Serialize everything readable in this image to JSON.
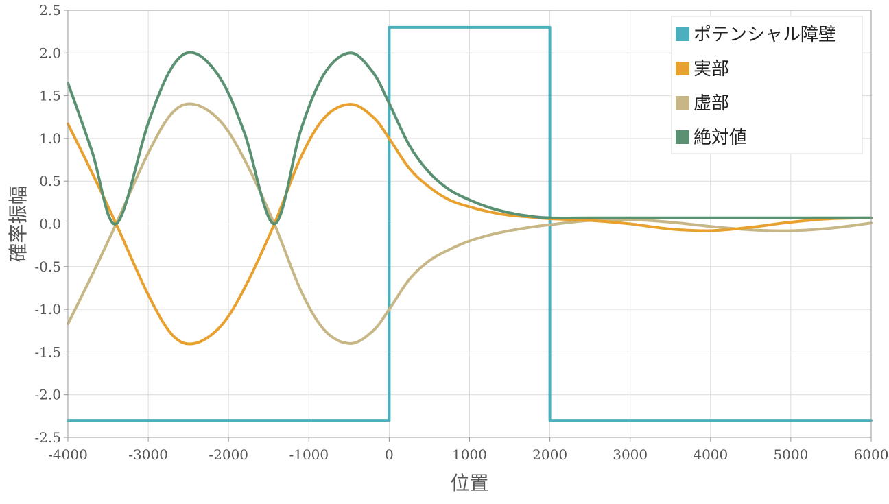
{
  "chart_data": {
    "type": "line",
    "title": "",
    "xlabel": "位置",
    "ylabel": "確率振幅",
    "xlim": [
      -4000,
      6000
    ],
    "ylim": [
      -2.5,
      2.5
    ],
    "x_ticks": [
      -4000,
      -3000,
      -2000,
      -1000,
      0,
      1000,
      2000,
      3000,
      4000,
      5000,
      6000
    ],
    "x_tick_labels": [
      "-4000",
      "-3000",
      "-2000",
      "-1000",
      "0",
      "1000",
      "2000",
      "3000",
      "4000",
      "5000",
      "6000"
    ],
    "y_ticks": [
      2.5,
      2.0,
      1.5,
      1.0,
      0.5,
      0.0,
      -0.5,
      -1.0,
      -1.5,
      -2.0,
      -2.5
    ],
    "y_tick_labels": [
      "2.5",
      "2.0",
      "1.5",
      "1.0",
      "0.5",
      "0.0",
      "-0.5",
      "-1.0",
      "-1.5",
      "-2.0",
      "-2.5"
    ],
    "grid": true,
    "legend_position": "top-right",
    "series": [
      {
        "name": "ポテンシャル障壁",
        "color": "#4BB0BE",
        "x": [
          -4000,
          0,
          0,
          2000,
          2000,
          6000
        ],
        "y": [
          -2.3,
          -2.3,
          2.3,
          2.3,
          -2.3,
          -2.3
        ]
      },
      {
        "name": "実部",
        "color": "#E8A02F",
        "x": [
          -4000,
          -3700,
          -3400,
          -3000,
          -2700,
          -2430,
          -2100,
          -1800,
          -1430,
          -1100,
          -800,
          -480,
          -200,
          0,
          250,
          500,
          750,
          1000,
          1250,
          1500,
          1750,
          2000,
          2500,
          3000,
          3500,
          4000,
          4500,
          5000,
          5500,
          6000
        ],
        "y": [
          1.17,
          0.6,
          0.0,
          -0.83,
          -1.3,
          -1.4,
          -1.2,
          -0.75,
          0.0,
          0.78,
          1.25,
          1.4,
          1.25,
          1.0,
          0.65,
          0.43,
          0.28,
          0.2,
          0.14,
          0.1,
          0.08,
          0.06,
          0.04,
          0.0,
          -0.06,
          -0.08,
          -0.04,
          0.02,
          0.06,
          0.07
        ]
      },
      {
        "name": "虚部",
        "color": "#C8B786",
        "x": [
          -4000,
          -3700,
          -3400,
          -3000,
          -2700,
          -2430,
          -2100,
          -1800,
          -1430,
          -1100,
          -800,
          -480,
          -200,
          0,
          250,
          500,
          750,
          1000,
          1250,
          1500,
          1750,
          2000,
          2500,
          3000,
          3500,
          4000,
          4500,
          5000,
          5500,
          6000
        ],
        "y": [
          -1.17,
          -0.6,
          0.0,
          0.83,
          1.3,
          1.4,
          1.2,
          0.75,
          0.0,
          -0.78,
          -1.25,
          -1.4,
          -1.25,
          -1.0,
          -0.65,
          -0.43,
          -0.3,
          -0.2,
          -0.13,
          -0.08,
          -0.04,
          -0.01,
          0.04,
          0.05,
          0.02,
          -0.03,
          -0.07,
          -0.08,
          -0.05,
          0.01
        ]
      },
      {
        "name": "絶対値",
        "color": "#5A9172",
        "x": [
          -4000,
          -3700,
          -3400,
          -3000,
          -2700,
          -2430,
          -2100,
          -1800,
          -1430,
          -1100,
          -800,
          -480,
          -200,
          0,
          250,
          500,
          750,
          1000,
          1250,
          1500,
          1750,
          2000,
          2500,
          3000,
          3500,
          4000,
          4500,
          5000,
          5500,
          6000
        ],
        "y": [
          1.65,
          0.85,
          0.0,
          1.18,
          1.84,
          2.0,
          1.7,
          1.06,
          0.0,
          1.1,
          1.77,
          2.0,
          1.77,
          1.41,
          0.92,
          0.6,
          0.4,
          0.28,
          0.19,
          0.13,
          0.09,
          0.07,
          0.07,
          0.07,
          0.07,
          0.07,
          0.07,
          0.07,
          0.07,
          0.07
        ]
      }
    ]
  }
}
